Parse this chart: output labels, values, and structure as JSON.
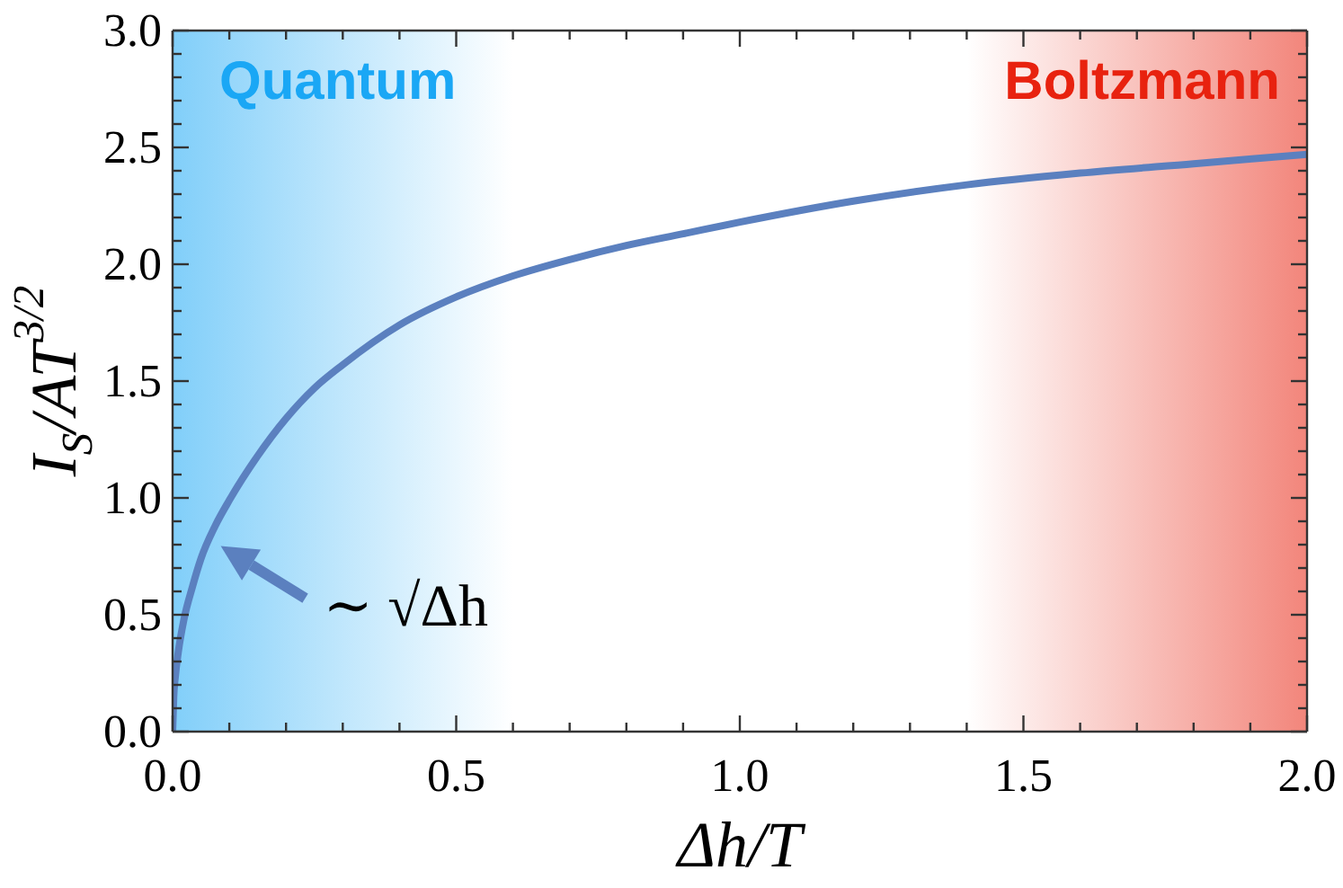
{
  "chart_data": {
    "type": "line",
    "xlabel": "Δh/T",
    "ylabel": "I$_{S}$/AT$^{3/2}$",
    "x": [
      0,
      0.002,
      0.005,
      0.01,
      0.02,
      0.035,
      0.05,
      0.075,
      0.1,
      0.15,
      0.2,
      0.25,
      0.3,
      0.4,
      0.5,
      0.6,
      0.7,
      0.8,
      0.9,
      1.0,
      1.2,
      1.4,
      1.6,
      1.8,
      2.0
    ],
    "series": [
      {
        "color": "#5b80bf",
        "values": [
          0,
          0.15,
          0.24,
          0.34,
          0.48,
          0.62,
          0.74,
          0.88,
          0.99,
          1.18,
          1.34,
          1.47,
          1.57,
          1.74,
          1.86,
          1.95,
          2.02,
          2.08,
          2.13,
          2.18,
          2.27,
          2.34,
          2.39,
          2.43,
          2.47
        ]
      }
    ],
    "xlim": [
      0,
      2
    ],
    "ylim": [
      0,
      3
    ],
    "xticks": [
      {
        "value": 0,
        "label": "0.0"
      },
      {
        "value": 0.1,
        "label": null
      },
      {
        "value": 0.2,
        "label": null
      },
      {
        "value": 0.3,
        "label": null
      },
      {
        "value": 0.4,
        "label": null
      },
      {
        "value": 0.5,
        "label": "0.5"
      },
      {
        "value": 0.6,
        "label": null
      },
      {
        "value": 0.7,
        "label": null
      },
      {
        "value": 0.8,
        "label": null
      },
      {
        "value": 0.9,
        "label": null
      },
      {
        "value": 1,
        "label": "1.0"
      },
      {
        "value": 1.1,
        "label": null
      },
      {
        "value": 1.2,
        "label": null
      },
      {
        "value": 1.3,
        "label": null
      },
      {
        "value": 1.4,
        "label": null
      },
      {
        "value": 1.5,
        "label": "1.5"
      },
      {
        "value": 1.6,
        "label": null
      },
      {
        "value": 1.7,
        "label": null
      },
      {
        "value": 1.8,
        "label": null
      },
      {
        "value": 1.9,
        "label": null
      },
      {
        "value": 2,
        "label": "2.0"
      }
    ],
    "yticks": [
      {
        "value": 0,
        "label": "0.0"
      },
      {
        "value": 0.1,
        "label": null
      },
      {
        "value": 0.2,
        "label": null
      },
      {
        "value": 0.3,
        "label": null
      },
      {
        "value": 0.4,
        "label": null
      },
      {
        "value": 0.5,
        "label": "0.5"
      },
      {
        "value": 0.6,
        "label": null
      },
      {
        "value": 0.7,
        "label": null
      },
      {
        "value": 0.8,
        "label": null
      },
      {
        "value": 0.9,
        "label": null
      },
      {
        "value": 1,
        "label": "1.0"
      },
      {
        "value": 1.1,
        "label": null
      },
      {
        "value": 1.2,
        "label": null
      },
      {
        "value": 1.3,
        "label": null
      },
      {
        "value": 1.4,
        "label": null
      },
      {
        "value": 1.5,
        "label": "1.5"
      },
      {
        "value": 1.6,
        "label": null
      },
      {
        "value": 1.7,
        "label": null
      },
      {
        "value": 1.8,
        "label": null
      },
      {
        "value": 1.9,
        "label": null
      },
      {
        "value": 2,
        "label": "2.0"
      },
      {
        "value": 2.1,
        "label": null
      },
      {
        "value": 2.2,
        "label": null
      },
      {
        "value": 2.3,
        "label": null
      },
      {
        "value": 2.4,
        "label": null
      },
      {
        "value": 2.5,
        "label": "2.5"
      },
      {
        "value": 2.6,
        "label": null
      },
      {
        "value": 2.7,
        "label": null
      },
      {
        "value": 2.8,
        "label": null
      },
      {
        "value": 2.9,
        "label": null
      },
      {
        "value": 3,
        "label": "3.0"
      }
    ],
    "bands": [
      {
        "axis": "x",
        "from": 0,
        "to": 0.6,
        "label": "Quantum",
        "color": "#1aa7f5"
      },
      {
        "axis": "x",
        "from": 1.4,
        "to": 2,
        "label": "Boltzmann",
        "color": "#e8220f"
      }
    ],
    "annotations": [
      {
        "text": "∼ √Δh",
        "x": 0.05,
        "y": 0.74
      }
    ],
    "marker": "none"
  }
}
